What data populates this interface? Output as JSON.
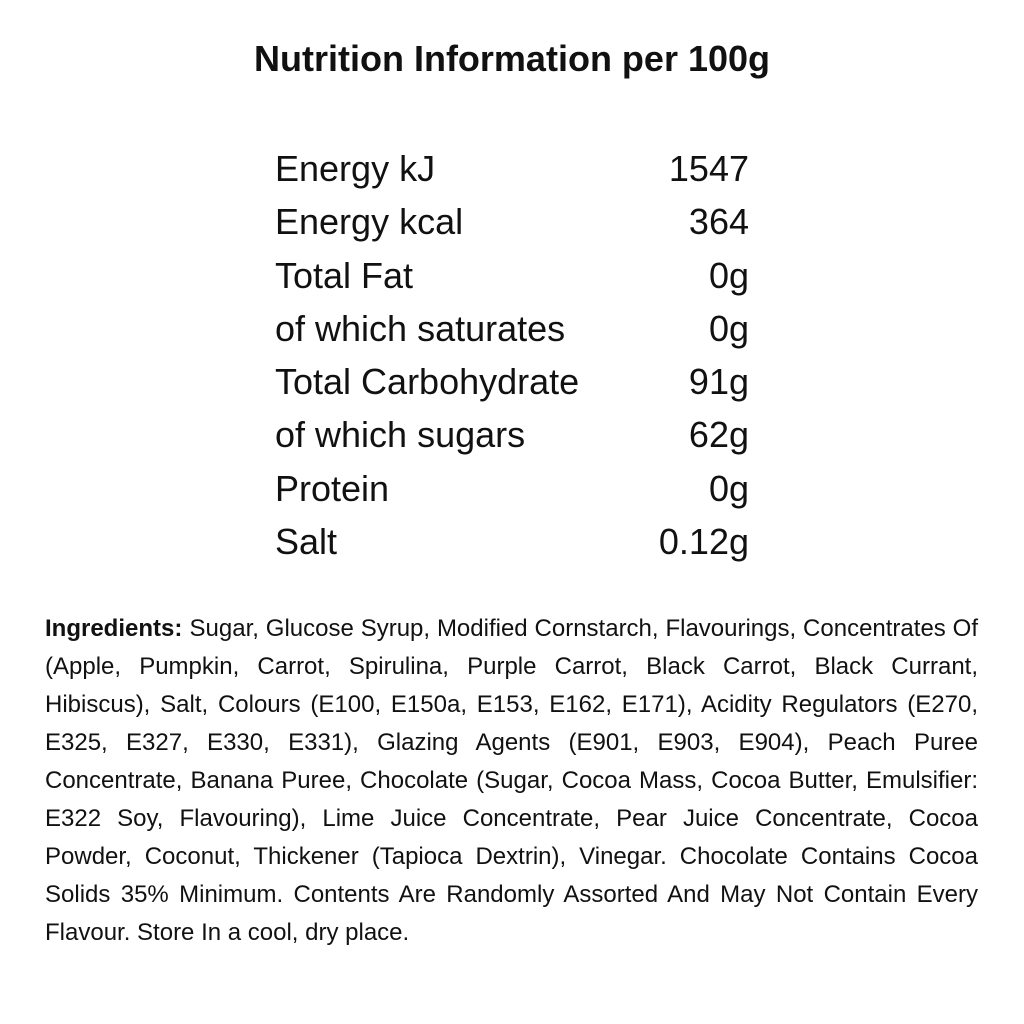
{
  "header": {
    "title": "Nutrition Information per 100g"
  },
  "table": {
    "rows": [
      [
        "Energy kJ",
        "1547"
      ],
      [
        "Energy kcal",
        "364"
      ],
      [
        "Total Fat",
        "0g"
      ],
      [
        "of which saturates",
        "0g"
      ],
      [
        "Total Carbohydrate",
        "91g"
      ],
      [
        "of which sugars",
        "62g"
      ],
      [
        "Protein",
        "0g"
      ],
      [
        "Salt",
        "0.12g"
      ]
    ]
  },
  "ingredients": {
    "label": "Ingredients:",
    "text": "Sugar, Glucose Syrup, Modified Cornstarch, Flavourings, Concentrates Of (Apple, Pumpkin, Carrot, Spirulina, Purple Carrot, Black Carrot, Black Currant, Hibiscus), Salt, Colours (E100, E150a, E153, E162, E171), Acidity Regulators (E270, E325, E327, E330, E331), Glazing Agents (E901, E903, E904), Peach Puree Concentrate, Banana Puree, Chocolate (Sugar, Cocoa Mass, Cocoa Butter, Emulsifier: E322 Soy, Flavouring), Lime Juice Concentrate, Pear Juice Concentrate, Cocoa Powder, Coconut, Thickener (Tapioca Dextrin), Vinegar. Chocolate Contains Cocoa Solids 35% Minimum. Contents Are Randomly Assorted And May Not Contain Every Flavour. Store In a cool, dry place."
  }
}
